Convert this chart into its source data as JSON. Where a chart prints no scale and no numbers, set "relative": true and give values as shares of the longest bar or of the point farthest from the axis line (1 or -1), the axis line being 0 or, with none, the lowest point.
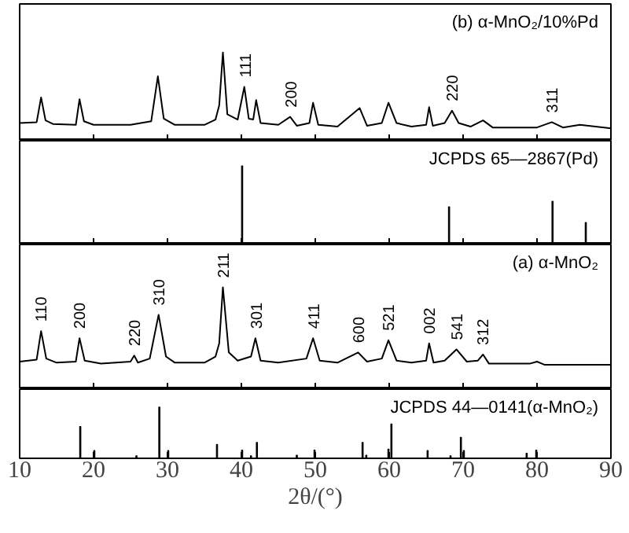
{
  "chart_data": [
    {
      "type": "line",
      "relative": true,
      "title": "(b) α-MnO₂/10%Pd",
      "color": "#000000",
      "xlim": [
        10,
        90
      ],
      "xticks": [
        10,
        20,
        30,
        40,
        50,
        60,
        70,
        80,
        90
      ],
      "tick_labels": false,
      "x": [
        10,
        12.3,
        12.9,
        13.5,
        14.5,
        17.6,
        18.1,
        18.7,
        20,
        25,
        27.8,
        28.7,
        29.5,
        31,
        35,
        36.5,
        37.0,
        37.5,
        38.1,
        39.5,
        40.4,
        41.0,
        41.6,
        42.0,
        42.6,
        45,
        46.6,
        47.5,
        49.2,
        49.7,
        50.4,
        53,
        56,
        57,
        59,
        59.9,
        61,
        63,
        65.0,
        65.4,
        65.9,
        67.5,
        68.5,
        69.4,
        71,
        72.7,
        74,
        80,
        82,
        83.5,
        85.8,
        90
      ],
      "values": [
        0.2,
        0.21,
        0.49,
        0.23,
        0.19,
        0.18,
        0.47,
        0.22,
        0.18,
        0.18,
        0.22,
        0.73,
        0.25,
        0.18,
        0.18,
        0.24,
        0.4,
        1.0,
        0.3,
        0.24,
        0.61,
        0.25,
        0.24,
        0.46,
        0.2,
        0.18,
        0.27,
        0.17,
        0.2,
        0.43,
        0.18,
        0.16,
        0.37,
        0.17,
        0.2,
        0.43,
        0.2,
        0.16,
        0.18,
        0.38,
        0.17,
        0.2,
        0.34,
        0.2,
        0.16,
        0.23,
        0.15,
        0.15,
        0.21,
        0.15,
        0.18,
        0.14
      ],
      "annotations": [
        {
          "text": "111",
          "x": 40.5,
          "y": 0.61
        },
        {
          "text": "200",
          "x": 46.7,
          "y": 0.27
        },
        {
          "text": "220",
          "x": 68.5,
          "y": 0.34
        },
        {
          "text": "311",
          "x": 82.0,
          "y": 0.21
        }
      ]
    },
    {
      "type": "bar",
      "relative": true,
      "title": "JCPDS 65—2867(Pd)",
      "color": "#000000",
      "xlim": [
        10,
        90
      ],
      "xticks": [
        10,
        20,
        30,
        40,
        50,
        60,
        70,
        80,
        90
      ],
      "tick_labels": false,
      "x": [
        40.1,
        46.7,
        68.1,
        82.1,
        86.6
      ],
      "values": [
        1.0,
        0.02,
        0.48,
        0.55,
        0.28
      ]
    },
    {
      "type": "line",
      "relative": true,
      "title": "(a) α-MnO₂",
      "color": "#000000",
      "xlim": [
        10,
        90
      ],
      "xticks": [
        10,
        20,
        30,
        40,
        50,
        60,
        70,
        80,
        90
      ],
      "tick_labels": false,
      "x": [
        10,
        12.3,
        12.9,
        13.6,
        15,
        17.6,
        18.1,
        18.8,
        21,
        25,
        25.5,
        26,
        27.6,
        28.8,
        29.8,
        31,
        35,
        36.5,
        37.0,
        37.5,
        38.3,
        39.5,
        41.3,
        41.9,
        42.6,
        45,
        48.8,
        49.7,
        50.6,
        53,
        55.8,
        57,
        59,
        59.9,
        61,
        63,
        65.0,
        65.4,
        66,
        67.5,
        69.1,
        70.5,
        72.0,
        72.7,
        73.5,
        79,
        80,
        81,
        90
      ],
      "values": [
        0.27,
        0.29,
        0.57,
        0.3,
        0.26,
        0.27,
        0.5,
        0.28,
        0.25,
        0.27,
        0.33,
        0.26,
        0.3,
        0.73,
        0.32,
        0.26,
        0.26,
        0.32,
        0.45,
        1.0,
        0.36,
        0.28,
        0.32,
        0.5,
        0.28,
        0.26,
        0.3,
        0.5,
        0.28,
        0.26,
        0.36,
        0.27,
        0.3,
        0.48,
        0.28,
        0.26,
        0.28,
        0.45,
        0.26,
        0.28,
        0.39,
        0.27,
        0.28,
        0.34,
        0.25,
        0.25,
        0.27,
        0.24,
        0.24
      ],
      "annotations": [
        {
          "text": "110",
          "x": 12.9,
          "y": 0.57
        },
        {
          "text": "200",
          "x": 18.1,
          "y": 0.5
        },
        {
          "text": "220",
          "x": 25.5,
          "y": 0.33
        },
        {
          "text": "310",
          "x": 28.8,
          "y": 0.73
        },
        {
          "text": "211",
          "x": 37.5,
          "y": 1.0
        },
        {
          "text": "301",
          "x": 42.0,
          "y": 0.5
        },
        {
          "text": "411",
          "x": 49.8,
          "y": 0.5
        },
        {
          "text": "600",
          "x": 55.8,
          "y": 0.36
        },
        {
          "text": "521",
          "x": 59.9,
          "y": 0.48
        },
        {
          "text": "002",
          "x": 65.4,
          "y": 0.45
        },
        {
          "text": "541",
          "x": 69.1,
          "y": 0.39
        },
        {
          "text": "312",
          "x": 72.7,
          "y": 0.34
        }
      ]
    },
    {
      "type": "bar",
      "relative": true,
      "title": "JCPDS 44—0141(α-MnO₂)",
      "xlabel": "2θ/(°)",
      "color": "#000000",
      "xlim": [
        10,
        90
      ],
      "xticks": [
        10,
        20,
        30,
        40,
        50,
        60,
        70,
        80,
        90
      ],
      "tick_labels": "x",
      "x": [
        18.2,
        20.1,
        25.8,
        28.9,
        30.1,
        36.7,
        40.1,
        41.3,
        42.1,
        47.5,
        49.9,
        56.4,
        56.9,
        59.9,
        60.3,
        65.2,
        68.3,
        69.7,
        70.1,
        78.6,
        79.9
      ],
      "values": [
        0.62,
        0.15,
        0.05,
        1.0,
        0.15,
        0.27,
        0.16,
        0.05,
        0.31,
        0.06,
        0.16,
        0.31,
        0.06,
        0.18,
        0.67,
        0.15,
        0.05,
        0.41,
        0.15,
        0.1,
        0.16
      ]
    }
  ]
}
